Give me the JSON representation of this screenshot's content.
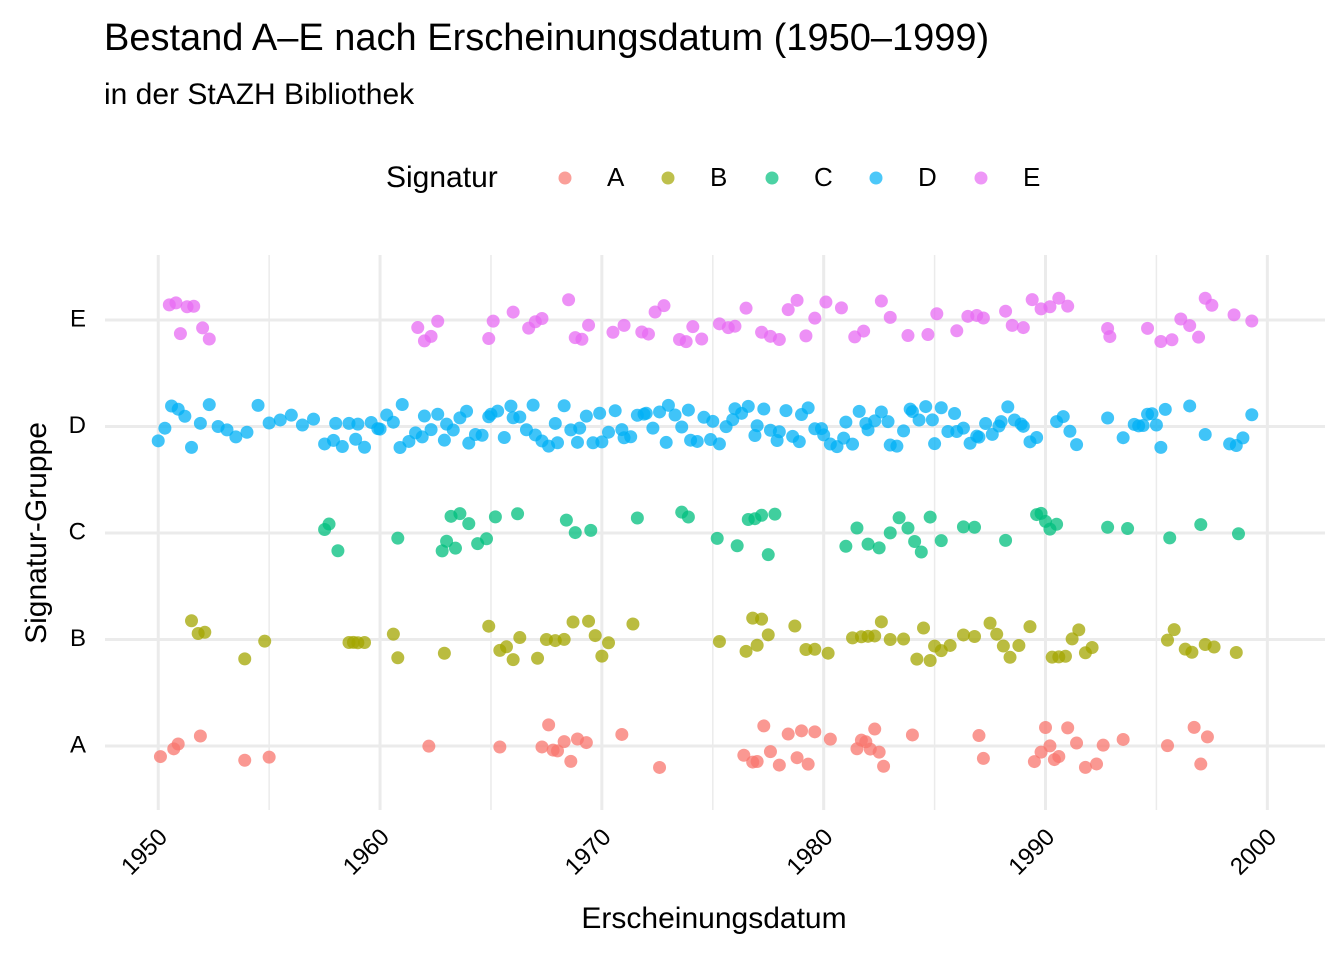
{
  "chart_data": {
    "type": "strip",
    "title": "Bestand A–E nach Erscheinungsdatum (1950–1999)",
    "subtitle": "in der StAZH Bibliothek",
    "x_label": "Erscheinungsdatum",
    "y_label": "Signatur-Gruppe",
    "legend_title": "Signatur",
    "legend_position": "top",
    "grid": true,
    "categories": [
      "A",
      "B",
      "C",
      "D",
      "E"
    ],
    "xlim": [
      1947.6,
      2002.6
    ],
    "xticks": [
      1950,
      1960,
      1970,
      1980,
      1990,
      2000
    ],
    "series": [
      {
        "name": "A",
        "color": "#F8766D",
        "x": [
          1950.1,
          1950.7,
          1950.9,
          1951.9,
          1953.9,
          1955.0,
          1962.2,
          1965.4,
          1967.3,
          1967.6,
          1967.8,
          1968.0,
          1968.3,
          1968.6,
          1968.9,
          1969.3,
          1970.9,
          1972.6,
          1976.4,
          1976.8,
          1977.0,
          1977.3,
          1977.6,
          1978.0,
          1978.4,
          1978.8,
          1979.0,
          1979.3,
          1979.6,
          1980.3,
          1981.5,
          1981.7,
          1981.9,
          1982.1,
          1982.3,
          1982.5,
          1982.7,
          1984.0,
          1987.0,
          1987.2,
          1989.5,
          1989.8,
          1990.0,
          1990.2,
          1990.4,
          1990.6,
          1991.0,
          1991.4,
          1991.8,
          1992.3,
          1992.6,
          1993.5,
          1995.5,
          1996.7,
          1997.0,
          1997.3
        ]
      },
      {
        "name": "B",
        "color": "#A3A500",
        "x": [
          1951.5,
          1951.8,
          1952.1,
          1953.9,
          1954.8,
          1958.6,
          1958.8,
          1959.0,
          1959.3,
          1960.6,
          1960.8,
          1962.9,
          1964.9,
          1965.4,
          1965.7,
          1966.0,
          1966.3,
          1967.1,
          1967.5,
          1967.9,
          1968.3,
          1968.7,
          1969.4,
          1969.7,
          1970.0,
          1970.3,
          1971.4,
          1975.3,
          1976.5,
          1976.8,
          1977.0,
          1977.2,
          1977.5,
          1978.7,
          1979.2,
          1979.6,
          1980.2,
          1981.3,
          1981.7,
          1982.0,
          1982.3,
          1982.6,
          1983.0,
          1983.6,
          1984.2,
          1984.5,
          1984.8,
          1985.0,
          1985.3,
          1985.7,
          1986.3,
          1986.8,
          1987.5,
          1987.8,
          1988.1,
          1988.4,
          1988.8,
          1989.3,
          1990.3,
          1990.6,
          1990.9,
          1991.2,
          1991.5,
          1991.8,
          1992.1,
          1995.5,
          1995.8,
          1996.3,
          1996.6,
          1997.2,
          1997.6,
          1998.6
        ]
      },
      {
        "name": "C",
        "color": "#00BF7D",
        "x": [
          1957.5,
          1957.7,
          1958.1,
          1960.8,
          1962.8,
          1963.0,
          1963.2,
          1963.4,
          1963.6,
          1964.0,
          1964.4,
          1964.8,
          1965.2,
          1966.2,
          1968.4,
          1968.8,
          1969.5,
          1971.6,
          1973.6,
          1973.9,
          1975.2,
          1976.1,
          1976.6,
          1976.9,
          1977.2,
          1977.5,
          1977.8,
          1981.0,
          1981.5,
          1982.0,
          1982.5,
          1983.0,
          1983.4,
          1983.8,
          1984.1,
          1984.4,
          1984.8,
          1985.3,
          1986.3,
          1986.8,
          1988.2,
          1989.6,
          1989.8,
          1990.0,
          1990.2,
          1990.5,
          1992.8,
          1993.7,
          1995.6,
          1997.0,
          1998.7
        ]
      },
      {
        "name": "D",
        "color": "#00B0F6",
        "x": [
          1950.0,
          1950.3,
          1950.6,
          1950.9,
          1951.2,
          1951.5,
          1951.9,
          1952.3,
          1952.7,
          1953.1,
          1953.5,
          1954.0,
          1954.5,
          1955.0,
          1955.5,
          1956.0,
          1956.5,
          1957.0,
          1957.5,
          1957.9,
          1958.0,
          1958.3,
          1958.6,
          1958.9,
          1959.0,
          1959.3,
          1959.6,
          1959.9,
          1960.0,
          1960.3,
          1960.6,
          1960.9,
          1961.0,
          1961.3,
          1961.6,
          1961.9,
          1962.0,
          1962.3,
          1962.6,
          1962.9,
          1963.0,
          1963.3,
          1963.6,
          1963.9,
          1964.0,
          1964.3,
          1964.6,
          1964.9,
          1965.0,
          1965.3,
          1965.6,
          1965.9,
          1966.0,
          1966.3,
          1966.6,
          1966.9,
          1967.0,
          1967.3,
          1967.6,
          1967.9,
          1968.0,
          1968.3,
          1968.6,
          1968.9,
          1969.0,
          1969.3,
          1969.6,
          1969.9,
          1970.0,
          1970.3,
          1970.6,
          1970.9,
          1971.0,
          1971.3,
          1971.6,
          1971.9,
          1972.0,
          1972.3,
          1972.6,
          1972.9,
          1973.0,
          1973.3,
          1973.6,
          1973.9,
          1974.0,
          1974.3,
          1974.6,
          1974.9,
          1975.0,
          1975.3,
          1975.6,
          1975.9,
          1976.0,
          1976.3,
          1976.6,
          1976.9,
          1977.0,
          1977.3,
          1977.6,
          1977.9,
          1978.0,
          1978.3,
          1978.6,
          1978.9,
          1979.0,
          1979.3,
          1979.6,
          1979.9,
          1980.0,
          1980.3,
          1980.6,
          1980.9,
          1981.0,
          1981.3,
          1981.6,
          1981.9,
          1982.0,
          1982.3,
          1982.6,
          1982.9,
          1983.0,
          1983.3,
          1983.6,
          1983.9,
          1984.0,
          1984.3,
          1984.6,
          1984.9,
          1985.0,
          1985.3,
          1985.6,
          1985.9,
          1986.0,
          1986.3,
          1986.6,
          1986.9,
          1987.0,
          1987.3,
          1987.6,
          1987.9,
          1988.0,
          1988.3,
          1988.6,
          1988.9,
          1989.0,
          1989.3,
          1989.6,
          1990.5,
          1990.8,
          1991.1,
          1991.4,
          1992.8,
          1993.5,
          1994.0,
          1994.2,
          1994.4,
          1994.6,
          1994.8,
          1995.0,
          1995.2,
          1995.4,
          1996.5,
          1997.2,
          1998.3,
          1998.6,
          1998.9,
          1999.3
        ]
      },
      {
        "name": "E",
        "color": "#E76BF3",
        "x": [
          1950.5,
          1950.8,
          1951.0,
          1951.3,
          1951.6,
          1952.0,
          1952.3,
          1961.7,
          1962.0,
          1962.3,
          1962.6,
          1964.9,
          1965.1,
          1966.0,
          1966.7,
          1967.0,
          1967.3,
          1968.5,
          1968.8,
          1969.1,
          1969.4,
          1970.5,
          1971.0,
          1971.8,
          1972.1,
          1972.4,
          1972.8,
          1973.5,
          1973.8,
          1974.1,
          1974.5,
          1975.3,
          1975.7,
          1976.0,
          1976.5,
          1977.2,
          1977.6,
          1978.0,
          1978.4,
          1978.8,
          1979.2,
          1979.6,
          1980.1,
          1980.8,
          1981.4,
          1981.8,
          1982.6,
          1983.0,
          1983.8,
          1984.7,
          1985.1,
          1986.0,
          1986.5,
          1986.9,
          1987.2,
          1988.2,
          1988.5,
          1989.0,
          1989.4,
          1989.8,
          1990.2,
          1990.6,
          1991.0,
          1992.8,
          1992.9,
          1994.6,
          1995.2,
          1995.7,
          1996.1,
          1996.5,
          1996.9,
          1997.2,
          1997.5,
          1998.5,
          1999.3
        ]
      }
    ]
  }
}
